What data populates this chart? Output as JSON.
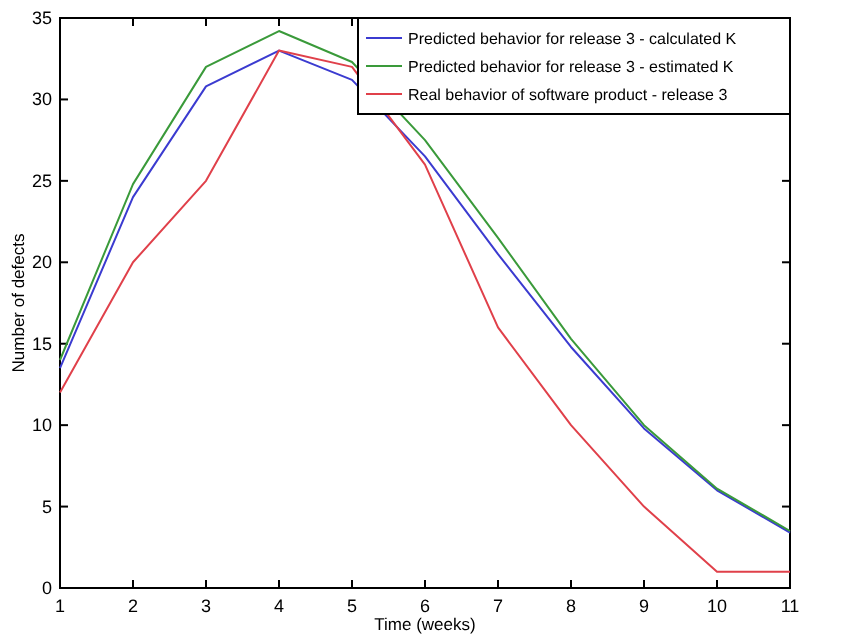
{
  "chart_data": {
    "type": "line",
    "xlabel": "Time (weeks)",
    "ylabel": "Number of defects",
    "x": [
      1,
      2,
      3,
      4,
      5,
      6,
      7,
      8,
      9,
      10,
      11
    ],
    "series": [
      {
        "name": "Predicted behavior for release 3 - calculated K",
        "color": "#3b3bd0",
        "values": [
          13.5,
          24,
          30.8,
          33,
          31.2,
          26.5,
          20.5,
          14.8,
          9.8,
          6,
          3.4
        ]
      },
      {
        "name": "Predicted behavior for release 3 - estimated K",
        "color": "#3a9a3a",
        "values": [
          14,
          24.8,
          32,
          34.2,
          32.3,
          27.5,
          21.5,
          15.3,
          10,
          6.1,
          3.5
        ]
      },
      {
        "name": "Real behavior of software product - release 3",
        "color": "#e0404a",
        "values": [
          12,
          20,
          25,
          33,
          32,
          26,
          16,
          10,
          5,
          1,
          1
        ]
      }
    ],
    "xlim": [
      1,
      11
    ],
    "xticks": [
      1,
      2,
      3,
      4,
      5,
      6,
      7,
      8,
      9,
      10,
      11
    ],
    "ylim": [
      0,
      35
    ],
    "yticks": [
      0,
      5,
      10,
      15,
      20,
      25,
      30,
      35
    ],
    "grid": false,
    "legend": "top right",
    "marker": "none",
    "line_style": "solid"
  }
}
